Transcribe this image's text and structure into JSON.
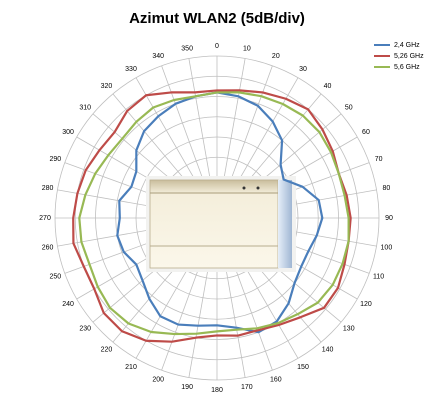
{
  "chart_data": {
    "type": "polar",
    "title": "Azimut  WLAN2 (5dB/div)",
    "theta": [
      0,
      10,
      20,
      30,
      40,
      50,
      60,
      70,
      80,
      90,
      100,
      110,
      120,
      130,
      140,
      150,
      160,
      170,
      180,
      190,
      200,
      210,
      220,
      230,
      240,
      250,
      260,
      270,
      280,
      290,
      300,
      310,
      320,
      330,
      340,
      350
    ],
    "rlim": [
      0,
      8
    ],
    "rticks": [
      1,
      2,
      3,
      4,
      5,
      6,
      7,
      8
    ],
    "grid": true,
    "legend": "upper right",
    "series": [
      {
        "name": "2,4 GHz",
        "color": "#4a7ebb",
        "values": [
          6.2,
          6.1,
          5.9,
          5.5,
          5.0,
          4.1,
          3.8,
          4.5,
          5.1,
          5.2,
          5.0,
          4.8,
          4.8,
          5.0,
          5.5,
          5.9,
          6.0,
          5.5,
          5.3,
          5.4,
          5.6,
          5.6,
          5.2,
          4.8,
          4.6,
          4.9,
          5.0,
          4.8,
          4.9,
          4.5,
          4.6,
          5.2,
          5.6,
          5.8,
          6.0,
          6.1
        ]
      },
      {
        "name": "5,26 GHz",
        "color": "#be4b48",
        "values": [
          6.3,
          6.4,
          6.6,
          6.8,
          7.0,
          6.8,
          6.6,
          6.4,
          6.5,
          6.6,
          6.6,
          6.7,
          6.9,
          6.9,
          6.4,
          6.1,
          5.9,
          5.9,
          5.8,
          6.0,
          6.5,
          7.0,
          7.3,
          7.3,
          7.0,
          7.0,
          7.2,
          7.1,
          7.0,
          6.9,
          6.7,
          6.6,
          6.9,
          7.0,
          6.6,
          6.3
        ]
      },
      {
        "name": "5,6 GHz",
        "color": "#98b954",
        "values": [
          6.2,
          6.3,
          6.4,
          6.5,
          6.6,
          6.6,
          6.5,
          6.4,
          6.4,
          6.5,
          6.6,
          6.6,
          6.6,
          6.5,
          6.2,
          6.0,
          5.8,
          5.6,
          5.6,
          5.8,
          6.1,
          6.5,
          6.8,
          6.9,
          6.8,
          6.7,
          6.8,
          6.8,
          6.6,
          6.4,
          6.2,
          6.1,
          6.2,
          6.3,
          6.2,
          6.1
        ]
      }
    ]
  }
}
